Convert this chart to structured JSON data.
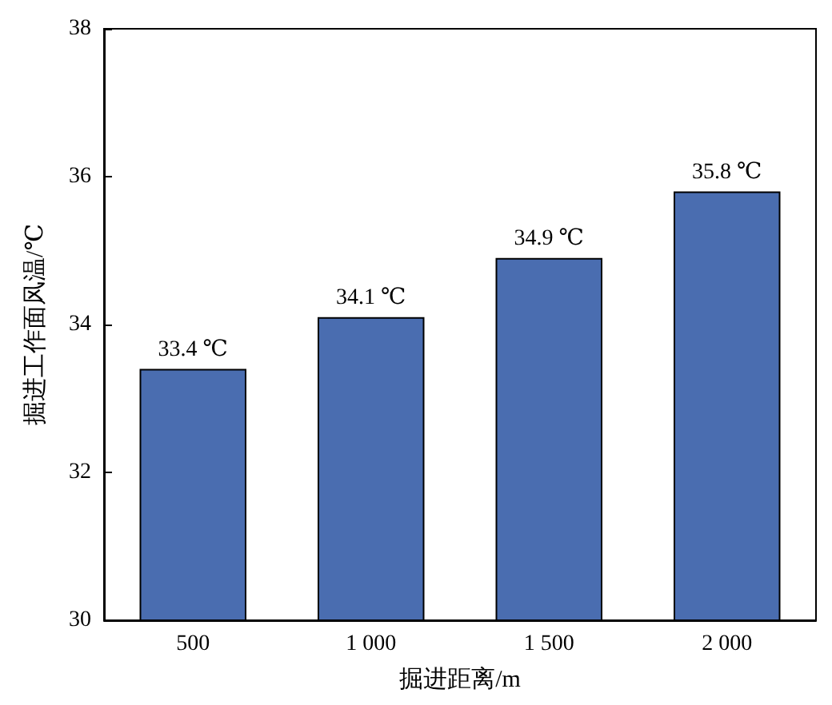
{
  "chart_data": {
    "type": "bar",
    "xlabel": "掘进距离/m",
    "ylabel": "掘进工作面风温/℃",
    "categories": [
      "500",
      "1 000",
      "1 500",
      "2 000"
    ],
    "values": [
      33.4,
      34.1,
      34.9,
      35.8
    ],
    "value_labels": [
      "33.4 ℃",
      "34.1 ℃",
      "34.9 ℃",
      "35.8 ℃"
    ],
    "color": "#4a6db0",
    "ylim": [
      30,
      38
    ],
    "yticks": [
      30,
      32,
      34,
      36,
      38
    ],
    "grid": false
  }
}
